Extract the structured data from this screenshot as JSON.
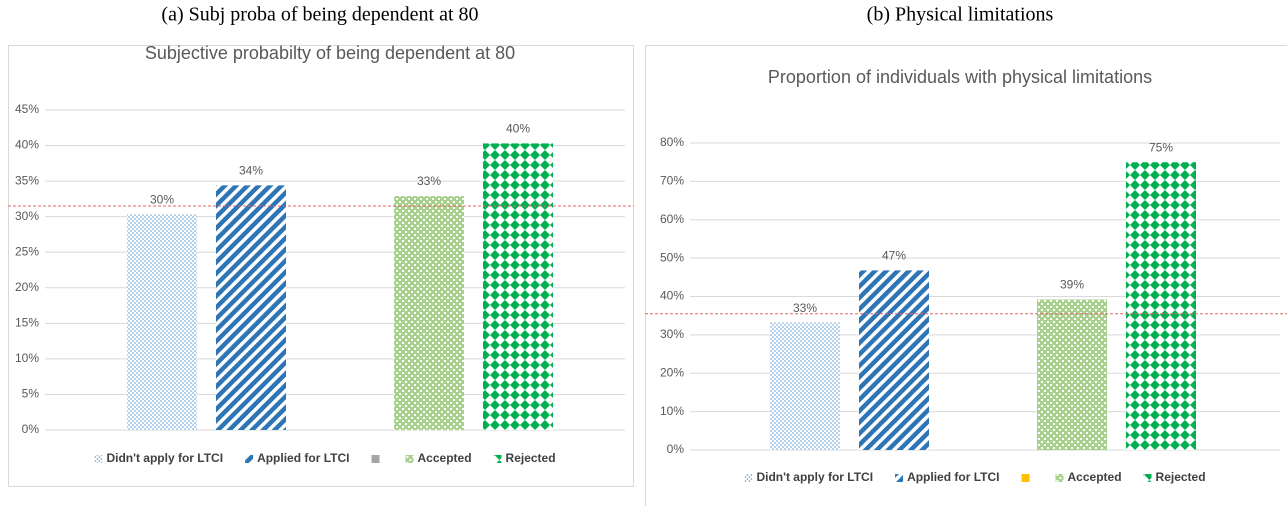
{
  "chart_data": [
    {
      "type": "bar",
      "caption": "(a) Subj proba of being dependent at 80",
      "title": "Subjective probabilty of being dependent at 80",
      "categories": [
        null
      ],
      "series": [
        {
          "name": "Didn't apply for LTCI",
          "color": "#5b9bd5",
          "pattern": "dots",
          "values": [
            30.3
          ],
          "value_labels": [
            "30%"
          ]
        },
        {
          "name": "Applied for LTCI",
          "color": "#2e75b6",
          "pattern": "stripes",
          "values": [
            34.4
          ],
          "value_labels": [
            "34%"
          ]
        },
        {
          "name": null,
          "color": "#a5a5a5",
          "pattern": "solid",
          "values": [
            null
          ],
          "value_labels": [
            null
          ]
        },
        {
          "name": "Accepted",
          "color": "#a9d18e",
          "pattern": "checks",
          "values": [
            32.9
          ],
          "value_labels": [
            "33%"
          ]
        },
        {
          "name": "Rejected",
          "color": "#00b050",
          "pattern": "diamonds",
          "values": [
            40.3
          ],
          "value_labels": [
            "40%"
          ]
        }
      ],
      "ylim": [
        0,
        45
      ],
      "yticks": [
        {
          "value": 0,
          "label": "0%"
        },
        {
          "value": 5,
          "label": "5%"
        },
        {
          "value": 10,
          "label": "10%"
        },
        {
          "value": 15,
          "label": "15%"
        },
        {
          "value": 20,
          "label": "20%"
        },
        {
          "value": 25,
          "label": "25%"
        },
        {
          "value": 30,
          "label": "30%"
        },
        {
          "value": 35,
          "label": "35%"
        },
        {
          "value": 40,
          "label": "40%"
        },
        {
          "value": 45,
          "label": "45%"
        }
      ],
      "grid": true,
      "reference_line": 31.5,
      "reference_color": "#e06666"
    },
    {
      "type": "bar",
      "caption": "(b) Physical limitations",
      "title": "Proportion of individuals with physical limitations",
      "categories": [
        null
      ],
      "series": [
        {
          "name": "Didn't apply for LTCI",
          "color": "#5b9bd5",
          "pattern": "dots",
          "values": [
            33.2
          ],
          "value_labels": [
            "33%"
          ]
        },
        {
          "name": "Applied for LTCI",
          "color": "#2e75b6",
          "pattern": "stripes",
          "values": [
            46.8
          ],
          "value_labels": [
            "47%"
          ]
        },
        {
          "name": null,
          "color": "#ffc000",
          "pattern": "solid",
          "values": [
            null
          ],
          "value_labels": [
            null
          ]
        },
        {
          "name": "Accepted",
          "color": "#a9d18e",
          "pattern": "checks",
          "values": [
            39.2
          ],
          "value_labels": [
            "39%"
          ]
        },
        {
          "name": "Rejected",
          "color": "#00b050",
          "pattern": "diamonds",
          "values": [
            75.0
          ],
          "value_labels": [
            "75%"
          ]
        }
      ],
      "ylim": [
        0,
        80
      ],
      "yticks": [
        {
          "value": 0,
          "label": "0%"
        },
        {
          "value": 10,
          "label": "10%"
        },
        {
          "value": 20,
          "label": "20%"
        },
        {
          "value": 30,
          "label": "30%"
        },
        {
          "value": 40,
          "label": "40%"
        },
        {
          "value": 50,
          "label": "50%"
        },
        {
          "value": 60,
          "label": "60%"
        },
        {
          "value": 70,
          "label": "70%"
        },
        {
          "value": 80,
          "label": "80%"
        }
      ],
      "grid": true,
      "reference_line": 35.5,
      "reference_color": "#e06666"
    }
  ]
}
